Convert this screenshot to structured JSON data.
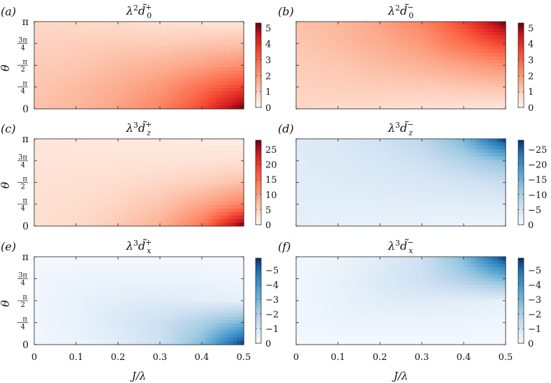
{
  "chart_data": [
    {
      "type": "heatmap",
      "panel_label": "(a)",
      "title": "λ²d̃₀⁺",
      "title_base": "λ",
      "title_pow": "2",
      "title_sym": "d̃",
      "title_sub": "0",
      "title_sup": "+",
      "cmap": "Reds",
      "xlim": [
        0,
        0.5
      ],
      "ylim": [
        0,
        "π"
      ],
      "colorbar_range": [
        0,
        5.3
      ],
      "colorbar_ticks": [
        "0",
        "1",
        "2",
        "3",
        "4",
        "5"
      ],
      "colorbar_tick_values": [
        0,
        1,
        2,
        3,
        4,
        5
      ],
      "peak_location": "bottom-right",
      "approx_value_grid": {
        "J": [
          0,
          0.1,
          0.2,
          0.3,
          0.4,
          0.5
        ],
        "theta": [
          "π",
          "3π/4",
          "π/2",
          "π/4",
          "0"
        ],
        "values": [
          [
            0.8,
            0.75,
            0.7,
            0.6,
            0.55,
            0.5
          ],
          [
            0.9,
            0.95,
            1.0,
            1.0,
            1.1,
            1.2
          ],
          [
            1.0,
            1.1,
            1.3,
            1.5,
            1.8,
            2.2
          ],
          [
            1.1,
            1.3,
            1.6,
            2.0,
            2.8,
            3.6
          ],
          [
            1.2,
            1.4,
            1.8,
            2.4,
            3.5,
            5.3
          ]
        ]
      }
    },
    {
      "type": "heatmap",
      "panel_label": "(b)",
      "title": "λ²d̃₀⁻",
      "title_base": "λ",
      "title_pow": "2",
      "title_sym": "d̃",
      "title_sub": "0",
      "title_sup": "−",
      "cmap": "Reds",
      "xlim": [
        0,
        0.5
      ],
      "ylim": [
        0,
        "π"
      ],
      "colorbar_range": [
        0,
        5.3
      ],
      "colorbar_ticks": [
        "0",
        "1",
        "2",
        "3",
        "4",
        "5"
      ],
      "colorbar_tick_values": [
        0,
        1,
        2,
        3,
        4,
        5
      ],
      "peak_location": "top-right",
      "approx_value_grid": {
        "J": [
          0,
          0.1,
          0.2,
          0.3,
          0.4,
          0.5
        ],
        "theta": [
          "π",
          "3π/4",
          "π/2",
          "π/4",
          "0"
        ],
        "values": [
          [
            1.2,
            1.4,
            1.8,
            2.4,
            3.5,
            5.3
          ],
          [
            1.1,
            1.3,
            1.6,
            2.0,
            2.8,
            3.6
          ],
          [
            1.0,
            1.1,
            1.3,
            1.5,
            1.8,
            2.2
          ],
          [
            0.9,
            0.95,
            1.0,
            1.0,
            1.1,
            1.2
          ],
          [
            0.8,
            0.75,
            0.7,
            0.6,
            0.55,
            0.5
          ]
        ]
      }
    },
    {
      "type": "heatmap",
      "panel_label": "(c)",
      "title": "λ³d̃_z⁺",
      "title_base": "λ",
      "title_pow": "3",
      "title_sym": "d̃",
      "title_sub": "z",
      "title_sup": "+",
      "cmap": "Reds",
      "xlim": [
        0,
        0.5
      ],
      "ylim": [
        0,
        "π"
      ],
      "colorbar_range": [
        0,
        28
      ],
      "colorbar_ticks": [
        "0",
        "5",
        "10",
        "15",
        "20",
        "25"
      ],
      "colorbar_tick_values": [
        0,
        5,
        10,
        15,
        20,
        25
      ],
      "peak_location": "bottom-right",
      "approx_value_grid": {
        "J": [
          0,
          0.1,
          0.2,
          0.3,
          0.4,
          0.5
        ],
        "theta": [
          "π",
          "3π/4",
          "π/2",
          "π/4",
          "0"
        ],
        "values": [
          [
            2.5,
            2.2,
            2.0,
            1.8,
            1.5,
            1.2
          ],
          [
            2.8,
            2.8,
            2.8,
            2.9,
            3.0,
            3.2
          ],
          [
            3.0,
            3.2,
            3.6,
            4.2,
            5.0,
            6.5
          ],
          [
            3.2,
            3.6,
            4.5,
            6.0,
            9.0,
            13.0
          ],
          [
            3.4,
            4.0,
            5.5,
            8.0,
            14.0,
            28.0
          ]
        ]
      }
    },
    {
      "type": "heatmap",
      "panel_label": "(d)",
      "title": "λ³d̃_z⁻",
      "title_base": "λ",
      "title_pow": "3",
      "title_sym": "d̃",
      "title_sub": "z",
      "title_sup": "−",
      "cmap": "Blues_r",
      "xlim": [
        0,
        0.5
      ],
      "ylim": [
        0,
        "π"
      ],
      "colorbar_range": [
        -28,
        0
      ],
      "colorbar_ticks": [
        "0",
        "−5",
        "−10",
        "−15",
        "−20",
        "−25"
      ],
      "colorbar_tick_values": [
        0,
        -5,
        -10,
        -15,
        -20,
        -25
      ],
      "peak_location": "top-right",
      "approx_value_grid": {
        "J": [
          0,
          0.1,
          0.2,
          0.3,
          0.4,
          0.5
        ],
        "theta": [
          "π",
          "3π/4",
          "π/2",
          "π/4",
          "0"
        ],
        "values": [
          [
            -3.4,
            -4.0,
            -5.5,
            -8.0,
            -14.0,
            -28.0
          ],
          [
            -3.2,
            -3.6,
            -4.5,
            -6.0,
            -9.0,
            -13.0
          ],
          [
            -3.0,
            -3.2,
            -3.6,
            -4.2,
            -5.0,
            -6.5
          ],
          [
            -2.8,
            -2.8,
            -2.8,
            -2.9,
            -3.0,
            -3.2
          ],
          [
            -2.5,
            -2.2,
            -2.0,
            -1.8,
            -1.5,
            -1.2
          ]
        ]
      }
    },
    {
      "type": "heatmap",
      "panel_label": "(e)",
      "title": "λ³d̃_x⁺",
      "title_base": "λ",
      "title_pow": "3",
      "title_sym": "d̃",
      "title_sub": "x",
      "title_sup": "+",
      "cmap": "Blues_r",
      "xlim": [
        0,
        0.5
      ],
      "ylim": [
        0,
        "π"
      ],
      "colorbar_range": [
        -5.8,
        0
      ],
      "colorbar_ticks": [
        "0",
        "−1",
        "−2",
        "−3",
        "−4",
        "−5"
      ],
      "colorbar_tick_values": [
        0,
        -1,
        -2,
        -3,
        -4,
        -5
      ],
      "peak_location": "bottom-right",
      "approx_value_grid": {
        "J": [
          0,
          0.1,
          0.2,
          0.3,
          0.4,
          0.5
        ],
        "theta": [
          "π",
          "3π/4",
          "π/2",
          "π/4",
          "0"
        ],
        "values": [
          [
            -0.1,
            -0.1,
            -0.1,
            -0.1,
            -0.1,
            -0.1
          ],
          [
            -0.2,
            -0.3,
            -0.3,
            -0.3,
            -0.3,
            -0.2
          ],
          [
            -0.2,
            -0.4,
            -0.6,
            -0.7,
            -0.6,
            -0.5
          ],
          [
            -0.2,
            -0.4,
            -0.8,
            -1.2,
            -2.0,
            -3.0
          ],
          [
            -0.2,
            -0.3,
            -0.6,
            -1.2,
            -2.8,
            -5.8
          ]
        ]
      }
    },
    {
      "type": "heatmap",
      "panel_label": "(f)",
      "title": "λ³d̃_x⁻",
      "title_base": "λ",
      "title_pow": "3",
      "title_sym": "d̃",
      "title_sub": "x",
      "title_sup": "−",
      "cmap": "Blues_r",
      "xlim": [
        0,
        0.5
      ],
      "ylim": [
        0,
        "π"
      ],
      "colorbar_range": [
        -5.8,
        0
      ],
      "colorbar_ticks": [
        "0",
        "−1",
        "−2",
        "−3",
        "−4",
        "−5"
      ],
      "colorbar_tick_values": [
        0,
        -1,
        -2,
        -3,
        -4,
        -5
      ],
      "peak_location": "top-right",
      "approx_value_grid": {
        "J": [
          0,
          0.1,
          0.2,
          0.3,
          0.4,
          0.5
        ],
        "theta": [
          "π",
          "3π/4",
          "π/2",
          "π/4",
          "0"
        ],
        "values": [
          [
            -0.2,
            -0.3,
            -0.6,
            -1.2,
            -2.8,
            -5.8
          ],
          [
            -0.2,
            -0.4,
            -0.8,
            -1.2,
            -2.0,
            -3.0
          ],
          [
            -0.2,
            -0.4,
            -0.6,
            -0.7,
            -0.6,
            -0.5
          ],
          [
            -0.2,
            -0.3,
            -0.3,
            -0.3,
            -0.3,
            -0.2
          ],
          [
            -0.1,
            -0.1,
            -0.1,
            -0.1,
            -0.1,
            -0.1
          ]
        ]
      }
    }
  ],
  "axes": {
    "ylabel": "θ",
    "xlabel": "J/λ",
    "x_ticks": [
      "0",
      "0.1",
      "0.2",
      "0.3",
      "0.4",
      "0.5"
    ],
    "x_tick_values": [
      0,
      0.1,
      0.2,
      0.3,
      0.4,
      0.5
    ],
    "y_ticks": [
      "π",
      "3π/4",
      "π/2",
      "π/4",
      "0"
    ],
    "y_tick_values": [
      3.14159,
      2.35619,
      1.5708,
      0.7854,
      0
    ]
  }
}
